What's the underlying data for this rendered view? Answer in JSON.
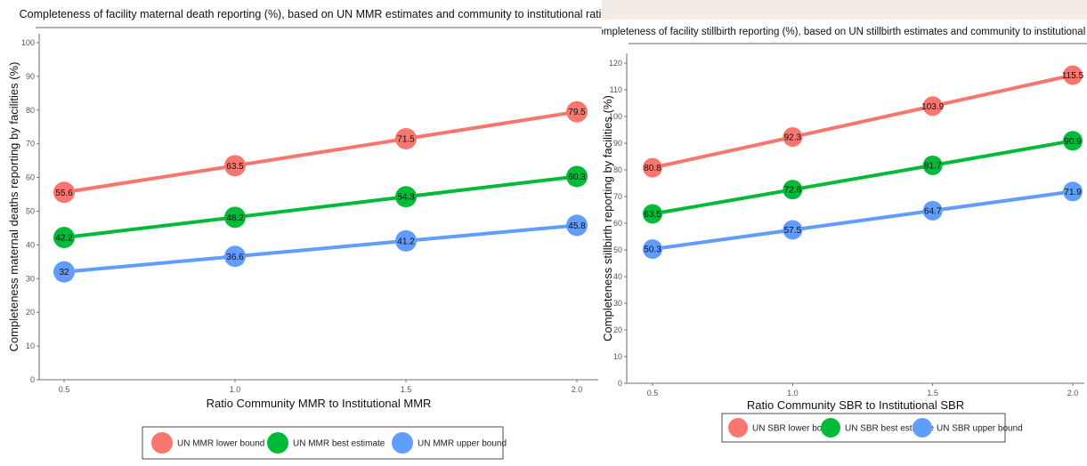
{
  "chart_data": [
    {
      "type": "line",
      "title": "Completeness of facility maternal death reporting (%), based on UN MMR estimates and community to institutional ratio",
      "xlabel": "Ratio Community MMR to Institutional MMR",
      "ylabel": "Completeness maternal deaths reporting by facilities (%)",
      "x": [
        0.5,
        1.0,
        1.5,
        2.0
      ],
      "x_tick_labels": [
        "0.5",
        "1.0",
        "1.5",
        "2.0"
      ],
      "y_ticks": [
        0,
        10,
        20,
        30,
        40,
        50,
        60,
        70,
        80,
        90,
        100
      ],
      "y_tick_labels": [
        "0",
        "10",
        "20",
        "30",
        "40",
        "50",
        "60",
        "70",
        "80",
        "90",
        "100"
      ],
      "ylim": [
        0,
        100
      ],
      "xlim": [
        0.5,
        2.0
      ],
      "grid": false,
      "legend_position": "bottom",
      "series": [
        {
          "name": "UN MMR lower bound",
          "color": "#f8766d",
          "values": [
            55.6,
            63.5,
            71.5,
            79.5
          ],
          "labels": [
            "55.6",
            "63.5",
            "71.5",
            "79.5"
          ]
        },
        {
          "name": "UN MMR best estimate",
          "color": "#00ba38",
          "values": [
            42.2,
            48.2,
            54.3,
            60.3
          ],
          "labels": [
            "42.2",
            "48.2",
            "54.3",
            "60.3"
          ]
        },
        {
          "name": "UN MMR upper bound",
          "color": "#619cff",
          "values": [
            32,
            36.6,
            41.2,
            45.8
          ],
          "labels": [
            "32",
            "36.6",
            "41.2",
            "45.8"
          ]
        }
      ]
    },
    {
      "type": "line",
      "title": "Completeness of facility stillbirth reporting (%), based on UN stillbirth estimates and community to institutional ratio",
      "xlabel": "Ratio Community SBR to Institutional SBR",
      "ylabel": "Completeness stillbirth reporting by facilities (%)",
      "x": [
        0.5,
        1.0,
        1.5,
        2.0
      ],
      "x_tick_labels": [
        "0.5",
        "1.0",
        "1.5",
        "2.0"
      ],
      "y_ticks": [
        0,
        10,
        20,
        30,
        40,
        50,
        60,
        70,
        80,
        90,
        100,
        110,
        120
      ],
      "y_tick_labels": [
        "0",
        "10",
        "20",
        "30",
        "40",
        "50",
        "60",
        "70",
        "80",
        "90",
        "100",
        "110",
        "120"
      ],
      "ylim": [
        0,
        120
      ],
      "xlim": [
        0.5,
        2.0
      ],
      "grid": false,
      "legend_position": "bottom",
      "series": [
        {
          "name": "UN SBR lower bound",
          "color": "#f8766d",
          "values": [
            80.8,
            92.3,
            103.9,
            115.5
          ],
          "labels": [
            "80.8",
            "92.3",
            "103.9",
            "115.5"
          ]
        },
        {
          "name": "UN SBR best estimate",
          "color": "#00ba38",
          "values": [
            63.5,
            72.6,
            81.7,
            90.9
          ],
          "labels": [
            "63.5",
            "72.6",
            "81.7",
            "90.9"
          ]
        },
        {
          "name": "UN SBR upper bound",
          "color": "#619cff",
          "values": [
            50.3,
            57.5,
            64.7,
            71.9
          ],
          "labels": [
            "50.3",
            "57.5",
            "64.7",
            "71.9"
          ]
        }
      ]
    }
  ]
}
